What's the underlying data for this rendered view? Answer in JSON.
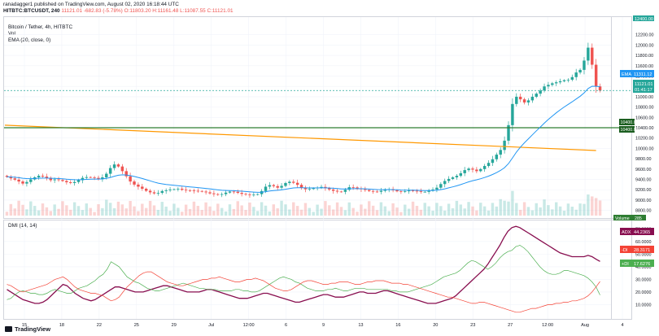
{
  "header": {
    "publisher_line": "ranadagger1 published on TradingView.com, August 02, 2020 16:18:44 UTC",
    "symbol_line": "HITBTC:BTCUSDT, 240",
    "change": "11121.01 -682.83 (-5.78%)",
    "ohlc": "O:11803.20 H:11161.48 L:11087.55 C:11121.01"
  },
  "legend": {
    "series_title": "Bitcoin / Tether, 4h, HITBTC",
    "vol": "Vol",
    "ema": "EMA (20, close, 0)",
    "dmi": "DMI (14, 14)"
  },
  "price_badges": {
    "top": "12400.00",
    "ema_tag": "EMA",
    "ema_value": "11311.12",
    "last": "11121.01",
    "countdown": "01:41:17",
    "support_1": "10400.00",
    "support_2": "10400.00",
    "volume_tag": "Volume",
    "volume_value": "285"
  },
  "dmi_badges": {
    "adx_tag": "ADX",
    "adx_value": "44.2365",
    "minus_tag": "-DI",
    "minus_value": "28.3171",
    "plus_tag": "+DI",
    "plus_value": "17.6276"
  },
  "footer": {
    "brand": "TradingView"
  },
  "colors": {
    "up": "#26a69a",
    "down": "#ef5350",
    "ema": "#2196f3",
    "support": "#2e7d32",
    "trend": "#ff9800",
    "adx": "#880e4f",
    "plus_di": "#4caf50",
    "minus_di": "#f44336"
  },
  "chart_data": [
    {
      "type": "candlestick",
      "title": "Bitcoin / Tether, 4h, HITBTC",
      "y_ticks": [
        8800,
        9000,
        9200,
        9400,
        9600,
        9800,
        10000,
        10200,
        10400,
        10600,
        10800,
        11000,
        11200,
        11400,
        11600,
        11800,
        12000,
        12200
      ],
      "y_tick_labels": [
        "8800.00",
        "9000.00",
        "9200.00",
        "9400.00",
        "9600.00",
        "9800.00",
        "10000.00",
        "10200.00",
        "10400.00",
        "10600.00",
        "10800.00",
        "11000.00",
        "11200.00",
        "11400.00",
        "11600.00",
        "11800.00",
        "12000.00",
        "12200.00"
      ],
      "ylim": [
        8700,
        12400
      ],
      "x_tick_labels": [
        "15",
        "18",
        "22",
        "25",
        "29",
        "Jul",
        "12:00",
        "6",
        "9",
        "13",
        "16",
        "20",
        "23",
        "27",
        "12:00",
        "Aug",
        "4"
      ],
      "horizontal_line": 10400,
      "trendline": [
        [
          0,
          10450
        ],
        [
          148,
          9960
        ]
      ],
      "close_series": [
        9450,
        9420,
        9395,
        9360,
        9320,
        9350,
        9400,
        9440,
        9470,
        9455,
        9430,
        9385,
        9400,
        9390,
        9370,
        9345,
        9330,
        9350,
        9385,
        9430,
        9445,
        9440,
        9430,
        9405,
        9440,
        9510,
        9620,
        9690,
        9650,
        9560,
        9460,
        9360,
        9300,
        9260,
        9220,
        9180,
        9150,
        9130,
        9140,
        9175,
        9190,
        9205,
        9210,
        9220,
        9200,
        9190,
        9185,
        9180,
        9175,
        9165,
        9150,
        9130,
        9115,
        9110,
        9115,
        9145,
        9165,
        9160,
        9140,
        9120,
        9110,
        9100,
        9105,
        9115,
        9175,
        9260,
        9290,
        9270,
        9240,
        9275,
        9330,
        9355,
        9335,
        9295,
        9240,
        9210,
        9215,
        9230,
        9240,
        9255,
        9230,
        9205,
        9180,
        9165,
        9160,
        9200,
        9250,
        9245,
        9225,
        9210,
        9195,
        9175,
        9165,
        9160,
        9180,
        9205,
        9210,
        9190,
        9170,
        9160,
        9170,
        9185,
        9180,
        9175,
        9160,
        9160,
        9185,
        9205,
        9240,
        9310,
        9370,
        9410,
        9440,
        9470,
        9520,
        9580,
        9610,
        9590,
        9560,
        9600,
        9660,
        9720,
        9790,
        9880,
        9970,
        10150,
        10450,
        10860,
        11000,
        10950,
        10890,
        10930,
        11000,
        11060,
        11120,
        11200,
        11230,
        11260,
        11280,
        11300,
        11320,
        11330,
        11380,
        11470,
        11520,
        11700,
        11950,
        11620,
        11200,
        11121
      ],
      "volume_note": "Volume bars beneath price, last value 285"
    },
    {
      "type": "line",
      "title": "DMI (14, 14)",
      "y_ticks": [
        10,
        20,
        30,
        40,
        50,
        60,
        70
      ],
      "y_tick_labels": [
        "10.0000",
        "20.0000",
        "30.0000",
        "40.0000",
        "50.0000",
        "60.0000",
        "70.0000"
      ],
      "ylim": [
        0,
        76
      ],
      "series": [
        {
          "name": "ADX",
          "values": [
            22,
            20,
            18,
            16,
            14,
            13,
            12,
            11,
            11,
            12,
            14,
            17,
            20,
            23,
            26,
            25,
            22,
            19,
            17,
            15,
            14,
            13,
            14,
            16,
            18,
            20,
            22,
            24,
            24,
            23,
            22,
            21,
            20,
            20,
            20,
            21,
            22,
            23,
            24,
            25,
            25,
            24,
            23,
            22,
            21,
            20,
            20,
            20,
            20,
            21,
            22,
            22,
            21,
            20,
            19,
            18,
            17,
            16,
            15,
            15,
            15,
            16,
            17,
            18,
            19,
            19,
            18,
            17,
            16,
            15,
            14,
            13,
            12,
            12,
            13,
            14,
            15,
            16,
            17,
            18,
            18,
            17,
            16,
            16,
            16,
            17,
            18,
            19,
            20,
            20,
            19,
            19,
            19,
            20,
            21,
            21,
            20,
            19,
            18,
            17,
            16,
            15,
            14,
            13,
            12,
            11,
            11,
            11,
            12,
            13,
            14,
            15,
            17,
            20,
            23,
            26,
            29,
            32,
            35,
            38,
            42,
            47,
            52,
            57,
            63,
            68,
            71,
            72,
            71,
            69,
            67,
            65,
            63,
            61,
            59,
            57,
            55,
            53,
            51,
            50,
            49,
            48,
            48,
            48,
            48,
            49,
            48,
            46,
            44.24
          ]
        },
        {
          "name": "+DI",
          "values": [
            14,
            15,
            18,
            20,
            21,
            20,
            19,
            19,
            18,
            18,
            19,
            21,
            22,
            21,
            20,
            19,
            19,
            21,
            23,
            24,
            25,
            27,
            29,
            32,
            34,
            38,
            44,
            42,
            40,
            36,
            32,
            30,
            28,
            27,
            25,
            23,
            22,
            21,
            21,
            22,
            23,
            24,
            25,
            26,
            27,
            26,
            25,
            24,
            23,
            23,
            22,
            22,
            22,
            21,
            21,
            21,
            21,
            22,
            22,
            21,
            21,
            20,
            20,
            21,
            23,
            25,
            27,
            29,
            31,
            32,
            31,
            30,
            28,
            27,
            25,
            23,
            22,
            21,
            21,
            21,
            22,
            22,
            23,
            22,
            21,
            21,
            22,
            23,
            23,
            23,
            22,
            22,
            22,
            22,
            22,
            22,
            21,
            21,
            20,
            20,
            20,
            21,
            22,
            23,
            24,
            25,
            26,
            28,
            30,
            32,
            33,
            34,
            35,
            37,
            40,
            43,
            45,
            44,
            42,
            40,
            38,
            40,
            43,
            47,
            50,
            52,
            53,
            56,
            57,
            55,
            52,
            48,
            44,
            40,
            37,
            35,
            34,
            34,
            35,
            37,
            37,
            36,
            35,
            34,
            33,
            31,
            28,
            24,
            17.63
          ]
        },
        {
          "name": "-DI",
          "values": [
            26,
            25,
            23,
            21,
            20,
            21,
            22,
            23,
            24,
            25,
            26,
            28,
            30,
            31,
            32,
            30,
            27,
            24,
            22,
            21,
            20,
            19,
            19,
            18,
            17,
            15,
            13,
            14,
            16,
            20,
            24,
            27,
            30,
            33,
            35,
            36,
            36,
            34,
            32,
            30,
            28,
            27,
            26,
            25,
            25,
            26,
            27,
            28,
            29,
            30,
            30,
            31,
            31,
            32,
            31,
            30,
            29,
            28,
            28,
            29,
            30,
            30,
            31,
            30,
            29,
            27,
            25,
            23,
            22,
            21,
            21,
            22,
            24,
            26,
            28,
            29,
            29,
            28,
            27,
            26,
            26,
            27,
            27,
            28,
            28,
            28,
            27,
            26,
            26,
            27,
            28,
            28,
            29,
            29,
            29,
            28,
            27,
            27,
            27,
            26,
            26,
            25,
            24,
            23,
            22,
            21,
            20,
            19,
            18,
            17,
            16,
            16,
            15,
            14,
            13,
            12,
            11,
            11,
            12,
            12,
            11,
            10,
            9,
            8,
            7,
            6,
            5,
            4,
            4,
            5,
            6,
            7,
            7,
            8,
            9,
            10,
            10,
            11,
            11,
            12,
            12,
            13,
            13,
            14,
            15,
            17,
            20,
            24,
            28.32
          ]
        }
      ]
    }
  ]
}
